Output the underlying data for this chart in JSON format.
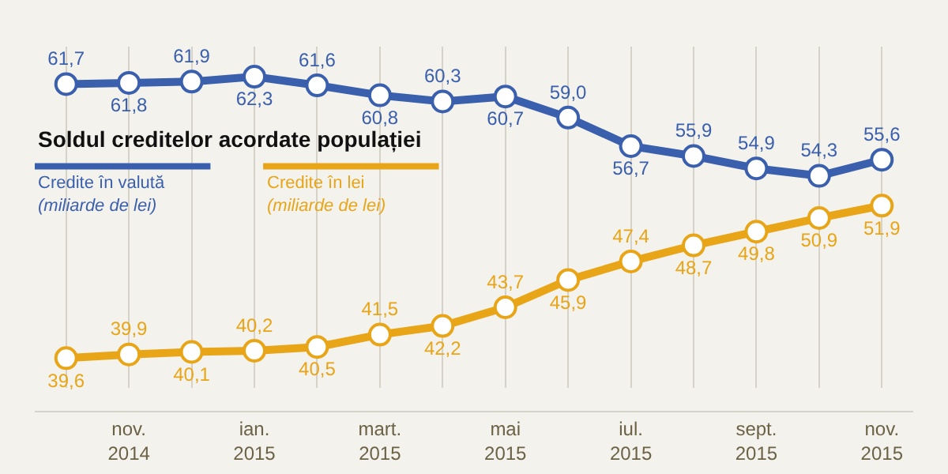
{
  "chart_data": {
    "type": "line",
    "legend_title": "Soldul creditelor acordate populației",
    "categories": [
      null,
      "nov. 2014",
      null,
      "ian. 2015",
      null,
      "mart. 2015",
      null,
      "mai 2015",
      null,
      "iul. 2015",
      null,
      "sept. 2015",
      null,
      "nov. 2015"
    ],
    "series": [
      {
        "name": "Credite în valută (miliarde de lei)",
        "color": "#3a5fad",
        "values": [
          61.7,
          61.8,
          61.9,
          62.3,
          61.6,
          60.8,
          60.3,
          60.7,
          59.0,
          56.7,
          55.9,
          54.9,
          54.3,
          55.6
        ],
        "value_labels": [
          "61,7",
          "61,8",
          "61,9",
          "62,3",
          "61,6",
          "60,8",
          "60,3",
          "60,7",
          "59,0",
          "56,7",
          "55,9",
          "54,9",
          "54,3",
          "55,6"
        ]
      },
      {
        "name": "Credite în lei (miliarde de lei)",
        "color": "#e8a517",
        "values": [
          39.6,
          39.9,
          40.1,
          40.2,
          40.5,
          41.5,
          42.2,
          43.7,
          45.9,
          47.4,
          48.7,
          49.8,
          50.9,
          51.9
        ],
        "value_labels": [
          "39,6",
          "39,9",
          "40,1",
          "40,2",
          "40,5",
          "41,5",
          "42,2",
          "43,7",
          "45,9",
          "47,4",
          "48,7",
          "49,8",
          "50,9",
          "51,9"
        ]
      }
    ],
    "data_labels": true,
    "marker": "circle",
    "line_style": "solid",
    "grid": "x",
    "legend": "left",
    "tick_labels": "x"
  }
}
